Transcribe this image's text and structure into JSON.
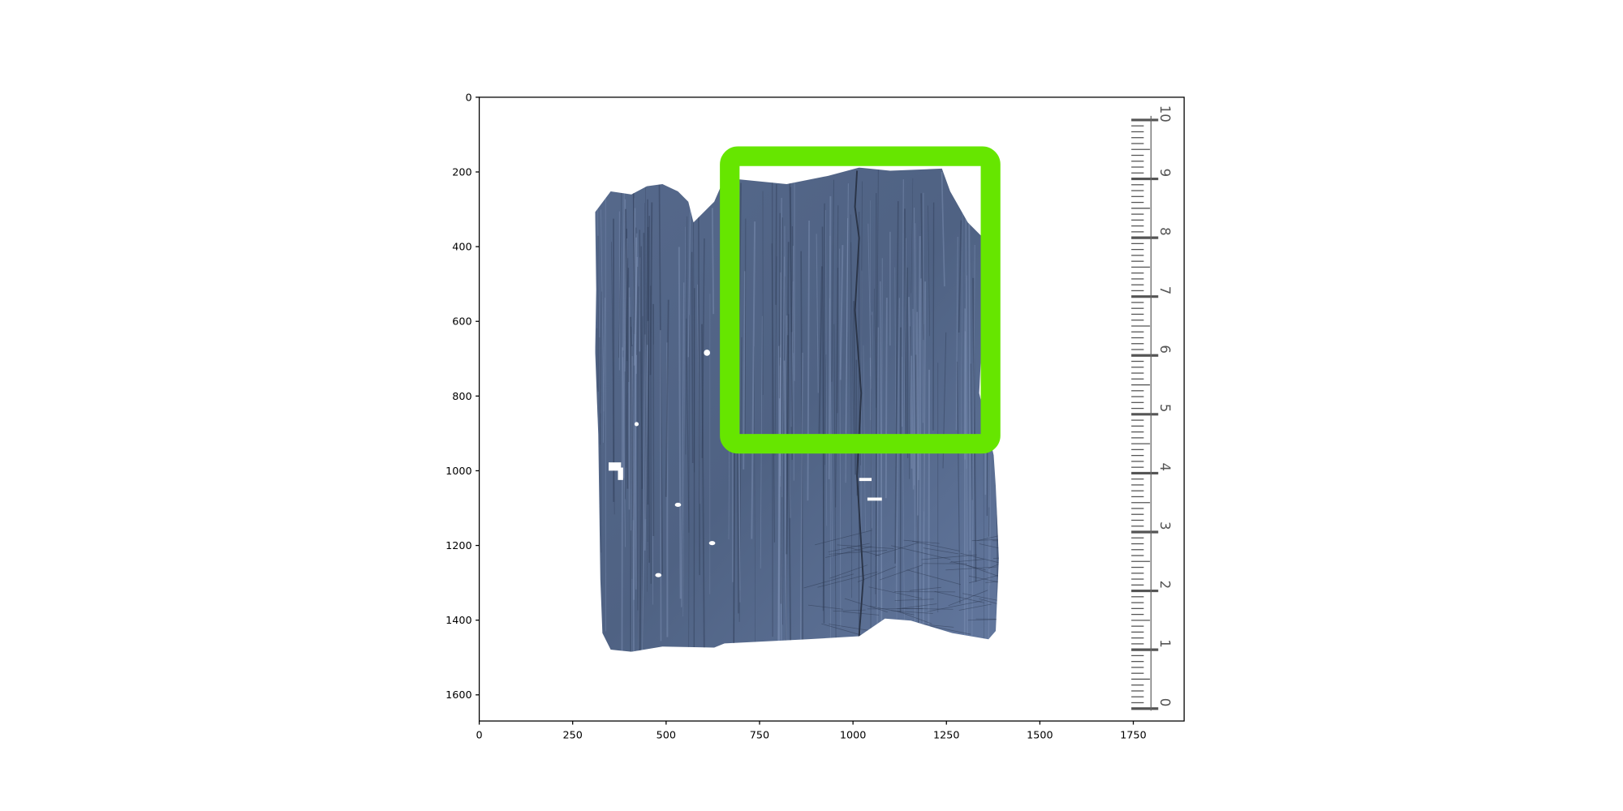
{
  "chart_data": {
    "type": "image",
    "xlim": [
      0,
      1886
    ],
    "ylim": [
      1670,
      0
    ],
    "xticks": [
      0,
      250,
      500,
      750,
      1000,
      1250,
      1500,
      1750
    ],
    "yticks": [
      0,
      200,
      400,
      600,
      800,
      1000,
      1200,
      1400,
      1600
    ],
    "ruler_labels": [
      "0",
      "1",
      "2",
      "3",
      "4",
      "5",
      "6",
      "7",
      "8",
      "9",
      "10"
    ]
  }
}
